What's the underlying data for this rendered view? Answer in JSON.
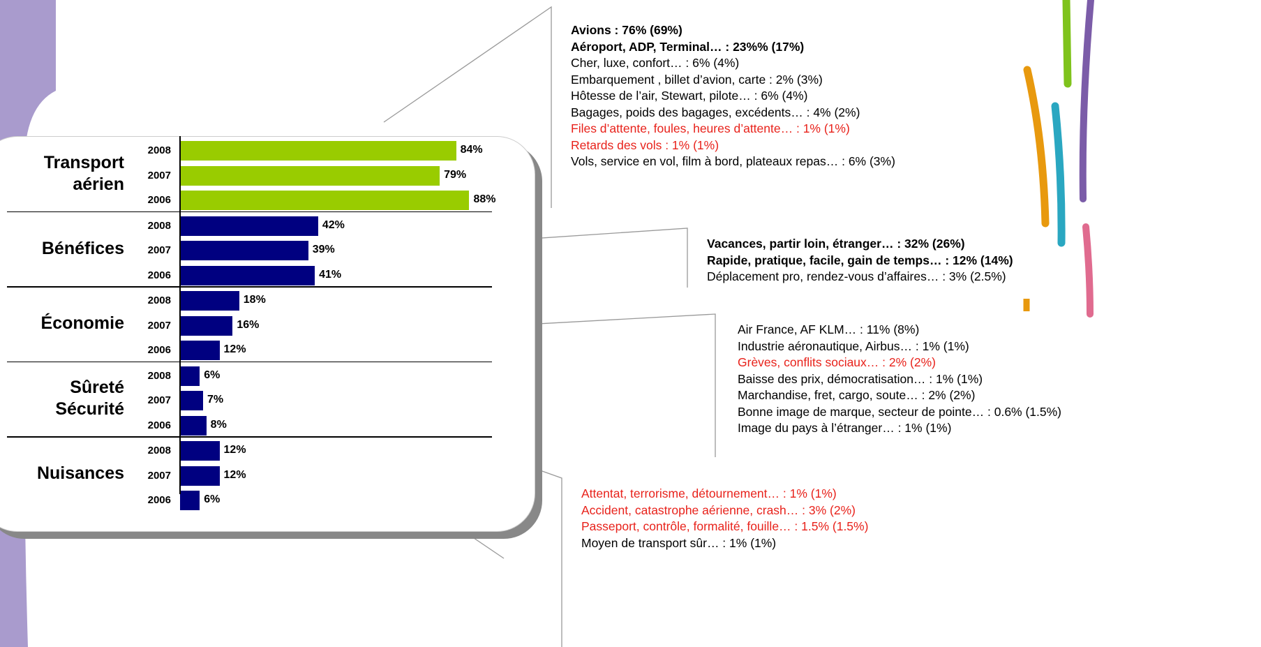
{
  "chart_data": {
    "type": "bar",
    "groups": [
      {
        "name": "Transport aérien",
        "categories": [
          "2008",
          "2007",
          "2006"
        ],
        "values": [
          84,
          79,
          88
        ],
        "value_labels": [
          "84%",
          "79%",
          "88%"
        ],
        "color": "#99cc00"
      },
      {
        "name": "Bénéfices",
        "categories": [
          "2008",
          "2007",
          "2006"
        ],
        "values": [
          42,
          39,
          41
        ],
        "value_labels": [
          "42%",
          "39%",
          "41%"
        ],
        "color": "#000080"
      },
      {
        "name": "Économie",
        "categories": [
          "2008",
          "2007",
          "2006"
        ],
        "values": [
          18,
          16,
          12
        ],
        "value_labels": [
          "18%",
          "16%",
          "12%"
        ],
        "color": "#000080"
      },
      {
        "name": "Sûreté Sécurité",
        "categories": [
          "2008",
          "2007",
          "2006"
        ],
        "values": [
          6,
          7,
          8
        ],
        "value_labels": [
          "6%",
          "7%",
          "8%"
        ],
        "color": "#000080"
      },
      {
        "name": "Nuisances",
        "categories": [
          "2008",
          "2007",
          "2006"
        ],
        "values": [
          12,
          12,
          6
        ],
        "value_labels": [
          "12%",
          "12%",
          "6%"
        ],
        "color": "#000080"
      }
    ],
    "annotations": [
      {
        "lines": [
          {
            "text": "Avions : 76% (69%)",
            "bold": true,
            "color": "#000000"
          },
          {
            "text": "Aéroport, ADP, Terminal… : 23%% (17%)",
            "bold": true,
            "color": "#000000"
          },
          {
            "text": "Cher, luxe, confort… : 6% (4%)",
            "bold": false,
            "color": "#000000"
          },
          {
            "text": "Embarquement , billet d’avion, carte : 2% (3%)",
            "bold": false,
            "color": "#000000"
          },
          {
            "text": "Hôtesse de l’air, Stewart, pilote… : 6% (4%)",
            "bold": false,
            "color": "#000000"
          },
          {
            "text": "Bagages, poids des bagages, excédents… : 4% (2%)",
            "bold": false,
            "color": "#000000"
          },
          {
            "text": "Files d’attente, foules, heures d’attente… : 1% (1%)",
            "bold": false,
            "color": "#e8221b"
          },
          {
            "text": "Retards des vols : 1% (1%)",
            "bold": false,
            "color": "#e8221b"
          },
          {
            "text": "Vols, service en vol, film à bord, plateaux repas… : 6% (3%)",
            "bold": false,
            "color": "#000000"
          }
        ]
      },
      {
        "lines": [
          {
            "text": "Vacances, partir loin, étranger… : 32% (26%)",
            "bold": true,
            "color": "#000000"
          },
          {
            "text": "Rapide, pratique, facile, gain de temps…  : 12% (14%)",
            "bold": true,
            "color": "#000000"
          },
          {
            "text": "Déplacement pro, rendez-vous d’affaires… : 3% (2.5%)",
            "bold": false,
            "color": "#000000"
          }
        ]
      },
      {
        "lines": [
          {
            "text": "Air France, AF KLM… : 11% (8%)",
            "bold": false,
            "color": "#000000"
          },
          {
            "text": "Industrie aéronautique, Airbus… : 1% (1%)",
            "bold": false,
            "color": "#000000"
          },
          {
            "text": "Grèves, conflits sociaux… :  2% (2%)",
            "bold": false,
            "color": "#e8221b"
          },
          {
            "text": "Baisse des prix, démocratisation… : 1% (1%)",
            "bold": false,
            "color": "#000000"
          },
          {
            "text": "Marchandise, fret, cargo, soute…  : 2% (2%)",
            "bold": false,
            "color": "#000000"
          },
          {
            "text": "Bonne image de marque, secteur de pointe… : 0.6% (1.5%)",
            "bold": false,
            "color": "#000000"
          },
          {
            "text": "Image du pays à l’étranger… : 1% (1%)",
            "bold": false,
            "color": "#000000"
          }
        ]
      },
      {
        "lines": [
          {
            "text": "Attentat, terrorisme, détournement… : 1% (1%)",
            "bold": false,
            "color": "#e8221b"
          },
          {
            "text": "Accident, catastrophe aérienne, crash… : 3% (2%)",
            "bold": false,
            "color": "#e8221b"
          },
          {
            "text": "Passeport, contrôle, formalité, fouille…  : 1.5% (1.5%)",
            "bold": false,
            "color": "#e8221b"
          },
          {
            "text": "Moyen de transport sûr… : 1% (1%)",
            "bold": false,
            "color": "#000000"
          }
        ]
      }
    ]
  }
}
